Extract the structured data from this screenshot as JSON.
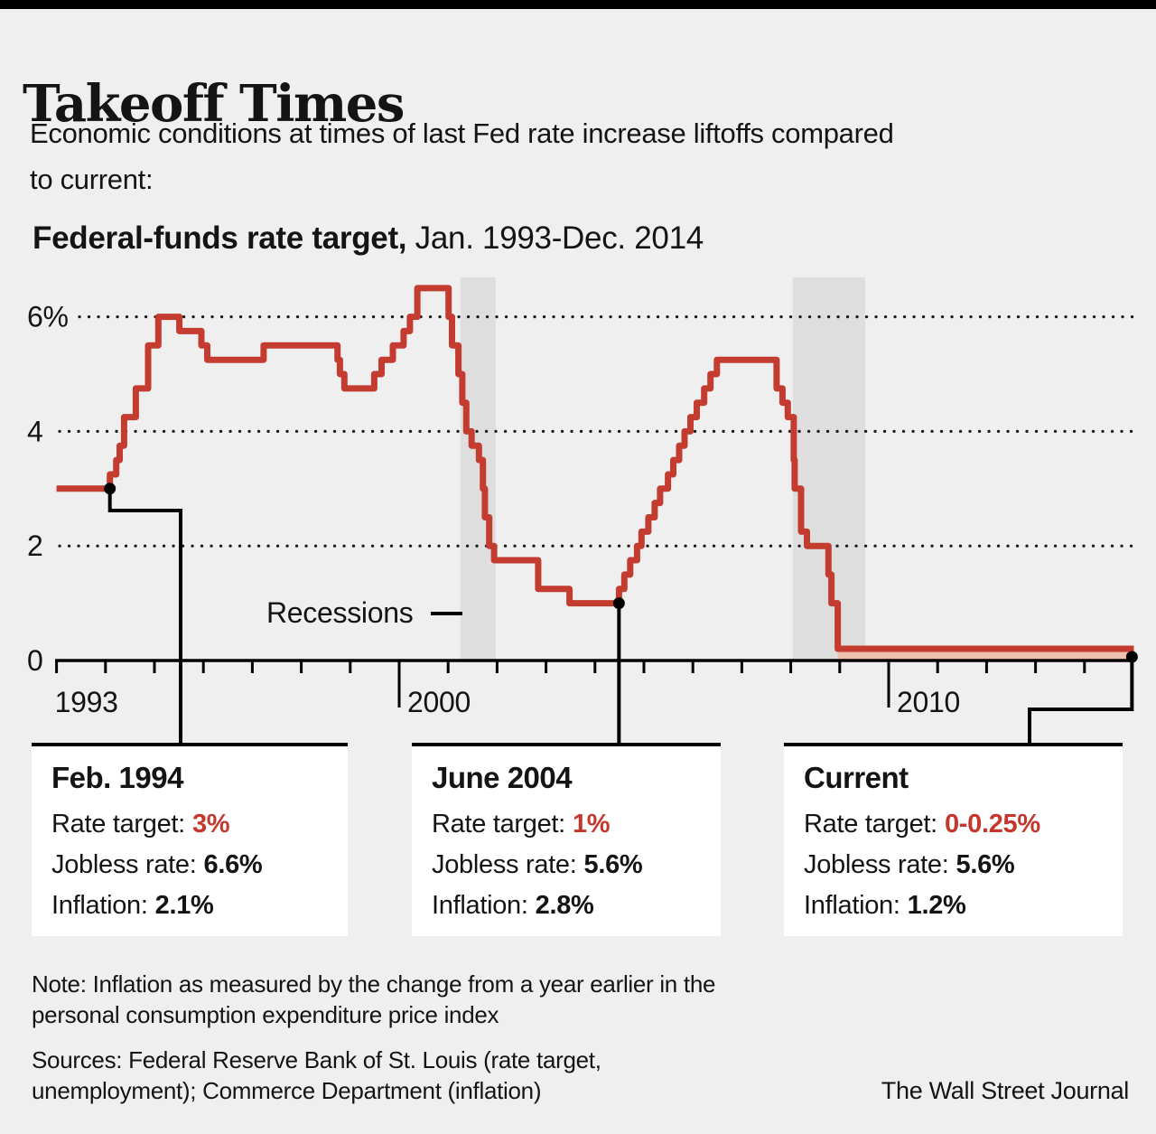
{
  "page": {
    "background": "#efefef",
    "top_bar_color": "#000000"
  },
  "header": {
    "title": "Takeoff Times",
    "subtitle_lines": [
      "Economic conditions at times of last Fed rate increase liftoffs compared",
      "to current:"
    ]
  },
  "chart": {
    "label_bold": "Federal-funds rate target,",
    "label_period": " Jan. 1993-Dec. 2014",
    "recessions_label": "Recessions"
  },
  "chart_data": {
    "type": "line",
    "step": true,
    "title": "Federal-funds rate target, Jan. 1993-Dec. 2014",
    "ylabel": "Federal-funds rate target (%)",
    "x_range": [
      1993,
      2015
    ],
    "y_range": [
      0,
      6.9
    ],
    "grid": "dotted-horizontal",
    "y_ticks": [
      {
        "value": 6,
        "label": "6%"
      },
      {
        "value": 4,
        "label": "4"
      },
      {
        "value": 2,
        "label": "2"
      },
      {
        "value": 0,
        "label": "0"
      }
    ],
    "x_tick_labels": [
      {
        "value": 1993,
        "label": "1993",
        "major": false
      },
      {
        "value": 2000,
        "label": "2000",
        "major": true
      },
      {
        "value": 2010,
        "label": "2010",
        "major": true
      }
    ],
    "recession_bands": [
      [
        2001.25,
        2001.97
      ],
      [
        2008.04,
        2009.52
      ]
    ],
    "series": [
      {
        "name": "Federal-funds rate target (%)",
        "color": "#c43b30",
        "points": [
          [
            1993.0,
            3.0
          ],
          [
            1994.09,
            3.25
          ],
          [
            1994.22,
            3.5
          ],
          [
            1994.29,
            3.75
          ],
          [
            1994.38,
            4.25
          ],
          [
            1994.62,
            4.75
          ],
          [
            1994.87,
            5.5
          ],
          [
            1995.08,
            6.0
          ],
          [
            1995.51,
            5.75
          ],
          [
            1995.96,
            5.5
          ],
          [
            1996.08,
            5.25
          ],
          [
            1997.23,
            5.5
          ],
          [
            1998.74,
            5.25
          ],
          [
            1998.79,
            5.0
          ],
          [
            1998.88,
            4.75
          ],
          [
            1999.49,
            5.0
          ],
          [
            1999.64,
            5.25
          ],
          [
            1999.87,
            5.5
          ],
          [
            2000.09,
            5.75
          ],
          [
            2000.22,
            6.0
          ],
          [
            2000.37,
            6.5
          ],
          [
            2001.01,
            6.0
          ],
          [
            2001.08,
            5.5
          ],
          [
            2001.21,
            5.0
          ],
          [
            2001.29,
            4.5
          ],
          [
            2001.37,
            4.0
          ],
          [
            2001.48,
            3.75
          ],
          [
            2001.63,
            3.5
          ],
          [
            2001.71,
            3.0
          ],
          [
            2001.75,
            2.5
          ],
          [
            2001.84,
            2.0
          ],
          [
            2001.94,
            1.75
          ],
          [
            2002.84,
            1.25
          ],
          [
            2003.48,
            1.0
          ],
          [
            2004.49,
            1.25
          ],
          [
            2004.6,
            1.5
          ],
          [
            2004.72,
            1.75
          ],
          [
            2004.86,
            2.0
          ],
          [
            2004.95,
            2.25
          ],
          [
            2005.09,
            2.5
          ],
          [
            2005.22,
            2.75
          ],
          [
            2005.33,
            3.0
          ],
          [
            2005.49,
            3.25
          ],
          [
            2005.6,
            3.5
          ],
          [
            2005.72,
            3.75
          ],
          [
            2005.83,
            4.0
          ],
          [
            2005.95,
            4.25
          ],
          [
            2006.08,
            4.5
          ],
          [
            2006.23,
            4.75
          ],
          [
            2006.36,
            5.0
          ],
          [
            2006.49,
            5.25
          ],
          [
            2007.71,
            4.75
          ],
          [
            2007.83,
            4.5
          ],
          [
            2007.94,
            4.25
          ],
          [
            2008.06,
            3.5
          ],
          [
            2008.08,
            3.0
          ],
          [
            2008.21,
            2.25
          ],
          [
            2008.33,
            2.0
          ],
          [
            2008.77,
            1.5
          ],
          [
            2008.83,
            1.0
          ],
          [
            2008.96,
            0.125
          ]
        ]
      }
    ],
    "zero_band_fill": "#eec0ae",
    "annotations": [
      {
        "t": 1994.09,
        "rate": 3.0,
        "label": "Feb. 1994"
      },
      {
        "t": 2004.49,
        "rate": 1.0,
        "label": "June 2004"
      },
      {
        "t": 2014.97,
        "rate": 0.125,
        "label": "Current"
      }
    ]
  },
  "callouts": [
    {
      "title": "Feb. 1994",
      "rows": [
        {
          "label": "Rate target:",
          "value": "3%"
        },
        {
          "label": "Jobless rate:",
          "value": "6.6%"
        },
        {
          "label": "Inflation:",
          "value": "2.1%"
        }
      ]
    },
    {
      "title": "June 2004",
      "rows": [
        {
          "label": "Rate target:",
          "value": "1%"
        },
        {
          "label": "Jobless rate:",
          "value": "5.6%"
        },
        {
          "label": "Inflation:",
          "value": "2.8%"
        }
      ]
    },
    {
      "title": "Current",
      "rows": [
        {
          "label": "Rate target:",
          "value": "0-0.25%"
        },
        {
          "label": "Jobless rate:",
          "value": "5.6%"
        },
        {
          "label": "Inflation:",
          "value": "1.2%"
        }
      ]
    }
  ],
  "footer": {
    "note_lines": [
      "Note: Inflation as measured by the change from a year earlier in the",
      "personal consumption expenditure price index"
    ],
    "source_lines": [
      "Sources: Federal Reserve Bank of St. Louis (rate target,",
      "unemployment); Commerce Department (inflation)"
    ],
    "credit": "The Wall Street Journal"
  },
  "colors": {
    "line_red": "#c43b30",
    "value_red": "#c5362c",
    "recession_band": "#dedede",
    "zero_fill": "#eec0ae",
    "axis": "#000000",
    "grid_dot": "#1a1a1a"
  }
}
